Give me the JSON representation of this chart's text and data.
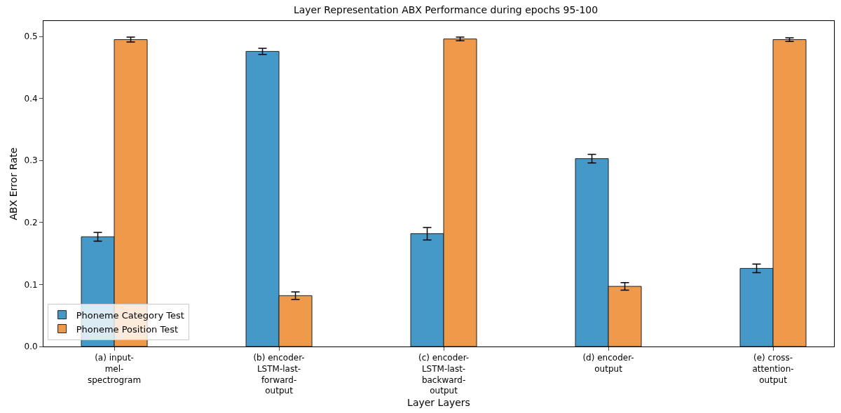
{
  "chart_data": {
    "type": "bar",
    "title": "Layer Representation ABX Performance during epochs 95-100",
    "xlabel": "Layer Layers",
    "ylabel": "ABX Error Rate",
    "categories": [
      "(a) input-\nmel-\nspectrogram",
      "(b) encoder-\nLSTM-last-\nforward-\noutput",
      "(c) encoder-\nLSTM-last-\nbackward-\noutput",
      "(d) encoder-\noutput",
      "(e) cross-\nattention-\noutput"
    ],
    "series": [
      {
        "name": "Phoneme Category Test",
        "color": "#4599c8",
        "values": [
          0.177,
          0.476,
          0.182,
          0.303,
          0.126
        ],
        "errors": [
          0.007,
          0.005,
          0.01,
          0.007,
          0.007
        ]
      },
      {
        "name": "Phoneme Position Test",
        "color": "#ef9a4a",
        "values": [
          0.495,
          0.082,
          0.496,
          0.097,
          0.495
        ],
        "errors": [
          0.004,
          0.006,
          0.003,
          0.006,
          0.003
        ]
      }
    ],
    "ylim": [
      0,
      0.525
    ],
    "yticks": [
      {
        "value": 0,
        "label": "0.0"
      },
      0.1,
      0.2,
      0.3,
      0.4,
      0.5
    ],
    "grid": false,
    "legend": "bottom left"
  }
}
